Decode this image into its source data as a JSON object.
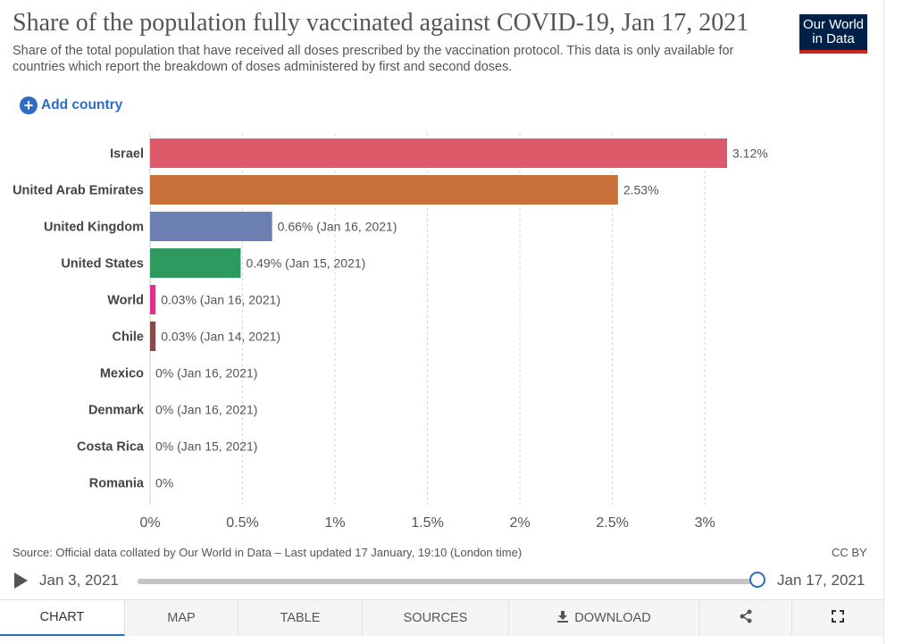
{
  "header": {
    "title": "Share of the population fully vaccinated against COVID-19, Jan 17, 2021",
    "subtitle": "Share of the total population that have received all doses prescribed by the vaccination protocol. This data is only available for countries which report the breakdown of doses administered by first and second doses.",
    "logo_line1": "Our World",
    "logo_line2": "in Data"
  },
  "add_country": {
    "label": "Add country",
    "icon": "plus-circle-icon"
  },
  "chart_data": {
    "type": "bar",
    "orientation": "horizontal",
    "categories": [
      "Israel",
      "United Arab Emirates",
      "United Kingdom",
      "United States",
      "World",
      "Chile",
      "Mexico",
      "Denmark",
      "Costa Rica",
      "Romania"
    ],
    "values": [
      3.12,
      2.53,
      0.66,
      0.49,
      0.03,
      0.03,
      0,
      0,
      0,
      0
    ],
    "value_labels": [
      "3.12%",
      "2.53%",
      "0.66% (Jan 16, 2021)",
      "0.49% (Jan 15, 2021)",
      "0.03% (Jan 16, 2021)",
      "0.03% (Jan 14, 2021)",
      "0% (Jan 16, 2021)",
      "0% (Jan 16, 2021)",
      "0% (Jan 15, 2021)",
      "0%"
    ],
    "colors": [
      "#dc5a6a",
      "#c8703a",
      "#6b7fb0",
      "#2e9a60",
      "#e0308a",
      "#8a4a4a",
      "#999999",
      "#999999",
      "#999999",
      "#999999"
    ],
    "xlim": [
      0,
      3.12
    ],
    "x_ticks": [
      0,
      0.5,
      1,
      1.5,
      2,
      2.5,
      3
    ],
    "x_tick_labels": [
      "0%",
      "0.5%",
      "1%",
      "1.5%",
      "2%",
      "2.5%",
      "3%"
    ],
    "grid": "vertical dashed"
  },
  "footer": {
    "source": "Source: Official data collated by Our World in Data – Last updated 17 January, 19:10 (London time)",
    "license": "CC BY"
  },
  "timeline": {
    "start_date": "Jan 3, 2021",
    "end_date": "Jan 17, 2021",
    "position": 1.0
  },
  "tabs": [
    {
      "label": "CHART",
      "active": true
    },
    {
      "label": "MAP",
      "active": false
    },
    {
      "label": "TABLE",
      "active": false
    },
    {
      "label": "SOURCES",
      "active": false
    },
    {
      "label": "DOWNLOAD",
      "active": false,
      "icon": "download-icon"
    },
    {
      "label": "",
      "active": false,
      "icon": "share-icon"
    },
    {
      "label": "",
      "active": false,
      "icon": "fullscreen-icon"
    }
  ]
}
